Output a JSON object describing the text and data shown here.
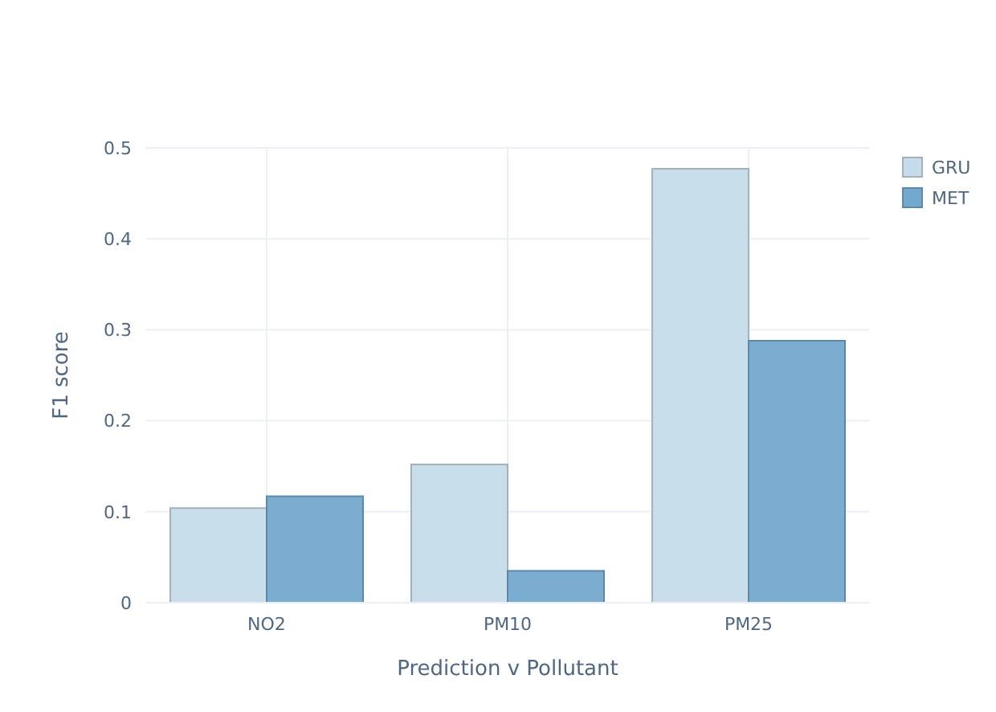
{
  "chart_data": {
    "type": "bar",
    "xlabel": "Prediction v Pollutant",
    "ylabel": "F1 score",
    "categories": [
      "NO2",
      "PM10",
      "PM25"
    ],
    "series": [
      {
        "name": "GRU",
        "color": "#c6dcea",
        "values": [
          0.104,
          0.152,
          0.477
        ]
      },
      {
        "name": "MET",
        "color": "#74a9cf",
        "values": [
          0.117,
          0.035,
          0.288
        ]
      }
    ],
    "ylim": [
      0,
      0.5
    ],
    "yticks": [
      0,
      0.1,
      0.2,
      0.3,
      0.4,
      0.5
    ],
    "grid": true,
    "legend": "top right"
  }
}
